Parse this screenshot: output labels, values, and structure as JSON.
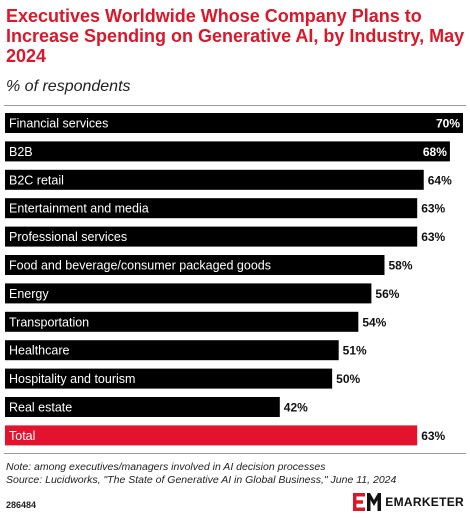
{
  "header": {
    "title": "Executives Worldwide Whose Company Plans to Increase Spending on Generative AI, by Industry, May 2024",
    "subtitle": "% of respondents"
  },
  "footer": {
    "note": "Note: among executives/managers involved in AI decision processes",
    "source": "Source: Lucidworks, \"The State of Generative AI in Global Business,\" June 11, 2024",
    "chart_id": "286484",
    "brand": "EMARKETER"
  },
  "colors": {
    "title": "#d9182a",
    "bar": "#000000",
    "highlight_bar": "#e4132d",
    "bar_text": "#ffffff"
  },
  "chart_data": {
    "type": "bar",
    "orientation": "horizontal",
    "categories": [
      "Financial services",
      "B2B",
      "B2C retail",
      "Entertainment and media",
      "Professional services",
      "Food and beverage/consumer packaged goods",
      "Energy",
      "Transportation",
      "Healthcare",
      "Hospitality and tourism",
      "Real estate",
      "Total"
    ],
    "values": [
      70,
      68,
      64,
      63,
      63,
      58,
      56,
      54,
      51,
      50,
      42,
      63
    ],
    "value_labels": [
      "70%",
      "68%",
      "64%",
      "63%",
      "63%",
      "58%",
      "56%",
      "54%",
      "51%",
      "50%",
      "42%",
      "63%"
    ],
    "highlight": [
      "Total"
    ],
    "xlim": [
      0,
      70
    ],
    "grid": false,
    "legend": "none"
  }
}
